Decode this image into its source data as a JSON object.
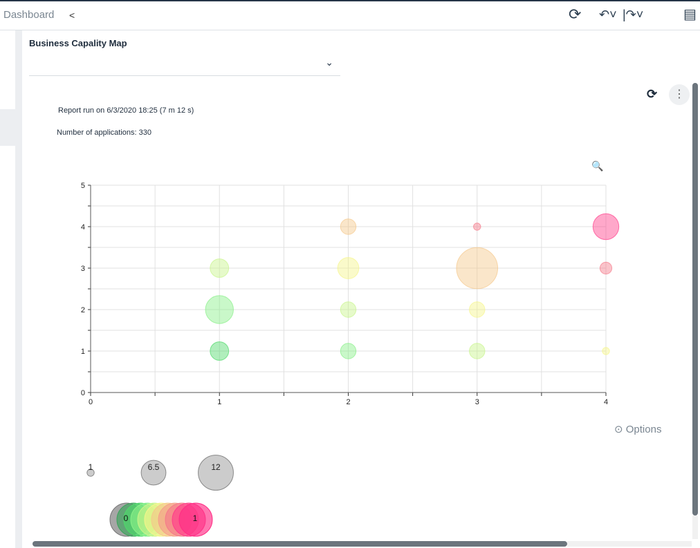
{
  "topbar": {
    "breadcrumb": "Dashboard",
    "share_icon": "share-icon",
    "refresh_icon": "refresh-icon",
    "undo_icon": "undo-icon",
    "redo_icon": "redo-icon",
    "report_icon": "report-search-icon"
  },
  "report": {
    "title": "Business Capality Map",
    "select_value": "",
    "run_info": "Report run on 6/3/2020 18:25 (7 m 12 s)",
    "app_count": "Number of applications: 330",
    "options_label": "Options"
  },
  "chart_data": {
    "type": "scatter",
    "subtype": "bubble",
    "xlim": [
      0,
      4
    ],
    "ylim": [
      0,
      5
    ],
    "x_ticks": [
      "0",
      "1",
      "2",
      "3",
      "4"
    ],
    "y_ticks": [
      "0",
      "1",
      "2",
      "3",
      "4",
      "5"
    ],
    "grid": true,
    "points": [
      {
        "x": 1,
        "y": 3,
        "size": 4,
        "color_value": 0.4
      },
      {
        "x": 1,
        "y": 2,
        "size": 8,
        "color_value": 0.3
      },
      {
        "x": 1,
        "y": 1,
        "size": 4,
        "color_value": 0.2
      },
      {
        "x": 2,
        "y": 4,
        "size": 3,
        "color_value": 0.6
      },
      {
        "x": 2,
        "y": 3,
        "size": 5,
        "color_value": 0.5
      },
      {
        "x": 2,
        "y": 2,
        "size": 3,
        "color_value": 0.4
      },
      {
        "x": 2,
        "y": 1,
        "size": 3,
        "color_value": 0.3
      },
      {
        "x": 3,
        "y": 4,
        "size": 1,
        "color_value": 0.8
      },
      {
        "x": 3,
        "y": 3,
        "size": 16,
        "color_value": 0.6
      },
      {
        "x": 3,
        "y": 2,
        "size": 3,
        "color_value": 0.5
      },
      {
        "x": 3,
        "y": 1,
        "size": 3,
        "color_value": 0.4
      },
      {
        "x": 4,
        "y": 4,
        "size": 7,
        "color_value": 0.9
      },
      {
        "x": 4,
        "y": 3,
        "size": 2,
        "color_value": 0.8
      },
      {
        "x": 4,
        "y": 1,
        "size": 1,
        "color_value": 0.5
      }
    ],
    "size_legend": [
      {
        "label": "1",
        "value": 1
      },
      {
        "label": "6.5",
        "value": 6.5
      },
      {
        "label": "12",
        "value": 12
      }
    ],
    "color_legend": {
      "min_label": "0",
      "max_label": "1",
      "colors": [
        "#777777",
        "#3aa35a",
        "#4fd96a",
        "#88f088",
        "#c8f58a",
        "#f5f58a",
        "#f5c88a",
        "#f5a08a",
        "#f57a8a",
        "#ff3d8a",
        "#ff2d85"
      ]
    }
  }
}
